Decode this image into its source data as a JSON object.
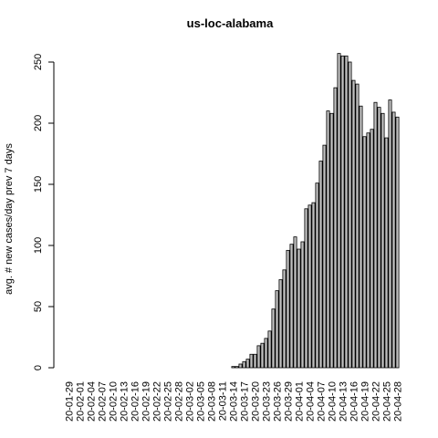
{
  "chart_data": {
    "type": "bar",
    "title": "us-loc-alabama",
    "y_label": "avg. # new cases/day prev  7  days",
    "categories": [
      "20-01-29",
      null,
      null,
      "20-02-01",
      null,
      null,
      "20-02-04",
      null,
      null,
      "20-02-07",
      null,
      null,
      "20-02-10",
      null,
      null,
      "20-02-13",
      null,
      null,
      "20-02-16",
      null,
      null,
      "20-02-19",
      null,
      null,
      "20-02-22",
      null,
      null,
      "20-02-25",
      null,
      null,
      "20-02-28",
      null,
      null,
      "20-03-02",
      null,
      null,
      "20-03-05",
      null,
      null,
      "20-03-08",
      null,
      null,
      "20-03-11",
      null,
      null,
      "20-03-14",
      null,
      null,
      "20-03-17",
      null,
      null,
      "20-03-20",
      null,
      null,
      "20-03-23",
      null,
      null,
      "20-03-26",
      null,
      null,
      "20-03-29",
      null,
      null,
      "20-04-01",
      null,
      null,
      "20-04-04",
      null,
      null,
      "20-04-07",
      null,
      null,
      "20-04-10",
      null,
      null,
      "20-04-13",
      null,
      null,
      "20-04-16",
      null,
      null,
      "20-04-19",
      null,
      null,
      "20-04-22",
      null,
      null,
      "20-04-25",
      null,
      null,
      "20-04-28"
    ],
    "values": [
      0,
      0,
      0,
      0,
      0,
      0,
      0,
      0,
      0,
      0,
      0,
      0,
      0,
      0,
      0,
      0,
      0,
      0,
      0,
      0,
      0,
      0,
      0,
      0,
      0,
      0,
      0,
      0,
      0,
      0,
      0,
      0,
      0,
      0,
      0,
      0,
      0,
      0,
      0,
      0,
      0,
      0,
      0,
      0,
      0,
      1,
      1,
      3,
      5,
      7,
      11,
      11,
      18,
      20,
      24,
      30,
      48,
      63,
      72,
      80,
      96,
      101,
      107,
      97,
      103,
      130,
      133,
      135,
      151,
      169,
      182,
      210,
      208,
      229,
      257,
      255,
      255,
      250,
      235,
      232,
      214,
      189,
      192,
      195,
      217,
      213,
      208,
      188,
      219,
      209,
      205
    ],
    "color": "#bebebe",
    "ylim": [
      0,
      250
    ],
    "yticks": [
      0,
      50,
      100,
      150,
      200,
      250
    ]
  }
}
